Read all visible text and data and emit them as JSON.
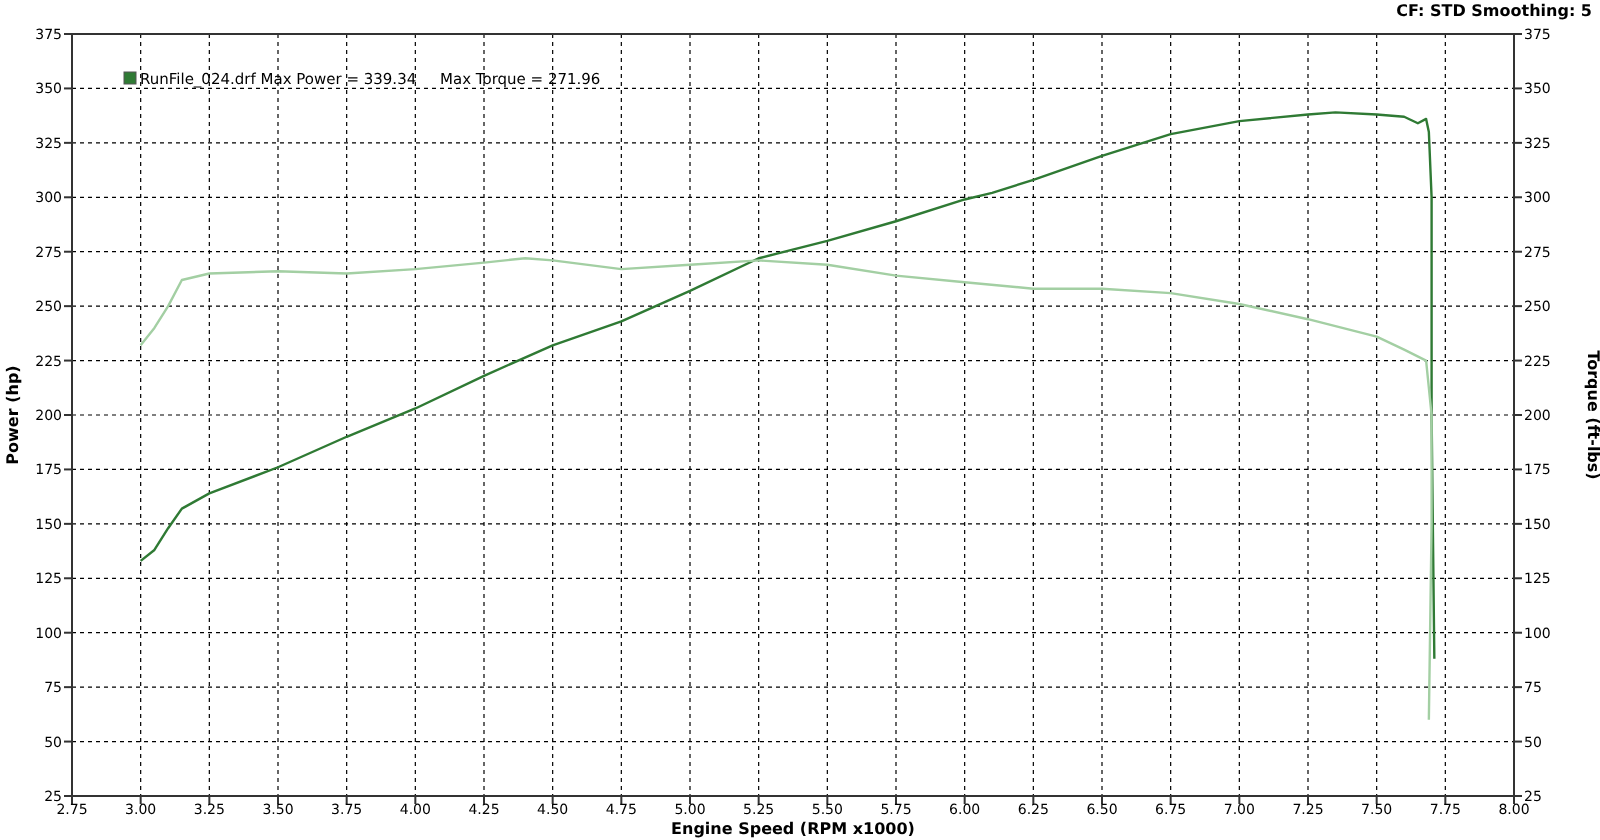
{
  "chart_data": {
    "type": "line",
    "xlabel": "Engine Speed (RPM x1000)",
    "ylabel": "Power (hp)",
    "y2label": "Torque (ft-lbs)",
    "annotations": [
      "CF: STD  Smoothing: 5"
    ],
    "xlim": [
      2.75,
      8
    ],
    "xticks": [
      {
        "value": 2.75,
        "label": "2.75"
      },
      {
        "value": 3,
        "label": "3.00"
      },
      {
        "value": 3.25,
        "label": "3.25"
      },
      {
        "value": 3.5,
        "label": "3.50"
      },
      {
        "value": 3.75,
        "label": "3.75"
      },
      {
        "value": 4,
        "label": "4.00"
      },
      {
        "value": 4.25,
        "label": "4.25"
      },
      {
        "value": 4.5,
        "label": "4.50"
      },
      {
        "value": 4.75,
        "label": "4.75"
      },
      {
        "value": 5,
        "label": "5.00"
      },
      {
        "value": 5.25,
        "label": "5.25"
      },
      {
        "value": 5.5,
        "label": "5.50"
      },
      {
        "value": 5.75,
        "label": "5.75"
      },
      {
        "value": 6,
        "label": "6.00"
      },
      {
        "value": 6.25,
        "label": "6.25"
      },
      {
        "value": 6.5,
        "label": "6.50"
      },
      {
        "value": 6.75,
        "label": "6.75"
      },
      {
        "value": 7,
        "label": "7.00"
      },
      {
        "value": 7.25,
        "label": "7.25"
      },
      {
        "value": 7.5,
        "label": "7.50"
      },
      {
        "value": 7.75,
        "label": "7.75"
      },
      {
        "value": 8,
        "label": "8.00"
      }
    ],
    "ylim": [
      25,
      375
    ],
    "yticks": [
      25,
      50,
      75,
      100,
      125,
      150,
      175,
      200,
      225,
      250,
      275,
      300,
      325,
      350,
      375
    ],
    "y2lim": [
      25,
      375
    ],
    "y2ticks": [
      25,
      50,
      75,
      100,
      125,
      150,
      175,
      200,
      225,
      250,
      275,
      300,
      325,
      350,
      375
    ],
    "grid": true,
    "legend": "top left",
    "line_style": "solid",
    "series": [
      {
        "name": "RunFile_024.drf Max Power = 339.34     Max Torque = 271.96",
        "color": "#2f7a34",
        "x": [
          3.0,
          3.05,
          3.1,
          3.15,
          3.25,
          3.5,
          3.75,
          4.0,
          4.25,
          4.5,
          4.75,
          5.0,
          5.25,
          5.5,
          5.75,
          6.0,
          6.1,
          6.25,
          6.5,
          6.75,
          7.0,
          7.25,
          7.35,
          7.5,
          7.6,
          7.65,
          7.68,
          7.69,
          7.7,
          7.7,
          7.7,
          7.71
        ],
        "values": [
          133,
          138,
          148,
          157,
          164,
          176,
          190,
          203,
          218,
          232,
          243,
          257,
          272,
          280,
          289,
          299,
          302,
          308,
          319,
          329,
          335,
          338,
          339,
          338,
          337,
          334,
          336,
          330,
          300,
          250,
          200,
          88
        ]
      },
      {
        "color": "#a3cfa3",
        "x": [
          3.0,
          3.05,
          3.1,
          3.15,
          3.25,
          3.5,
          3.75,
          4.0,
          4.25,
          4.4,
          4.5,
          4.75,
          5.0,
          5.25,
          5.5,
          5.75,
          6.0,
          6.25,
          6.5,
          6.75,
          7.0,
          7.25,
          7.5,
          7.6,
          7.68,
          7.7,
          7.7,
          7.69
        ],
        "values": [
          232,
          240,
          250,
          262,
          265,
          266,
          265,
          267,
          270,
          272,
          271,
          267,
          269,
          271,
          269,
          264,
          261,
          258,
          258,
          256,
          251,
          244,
          236,
          230,
          225,
          200,
          150,
          60
        ]
      }
    ]
  }
}
